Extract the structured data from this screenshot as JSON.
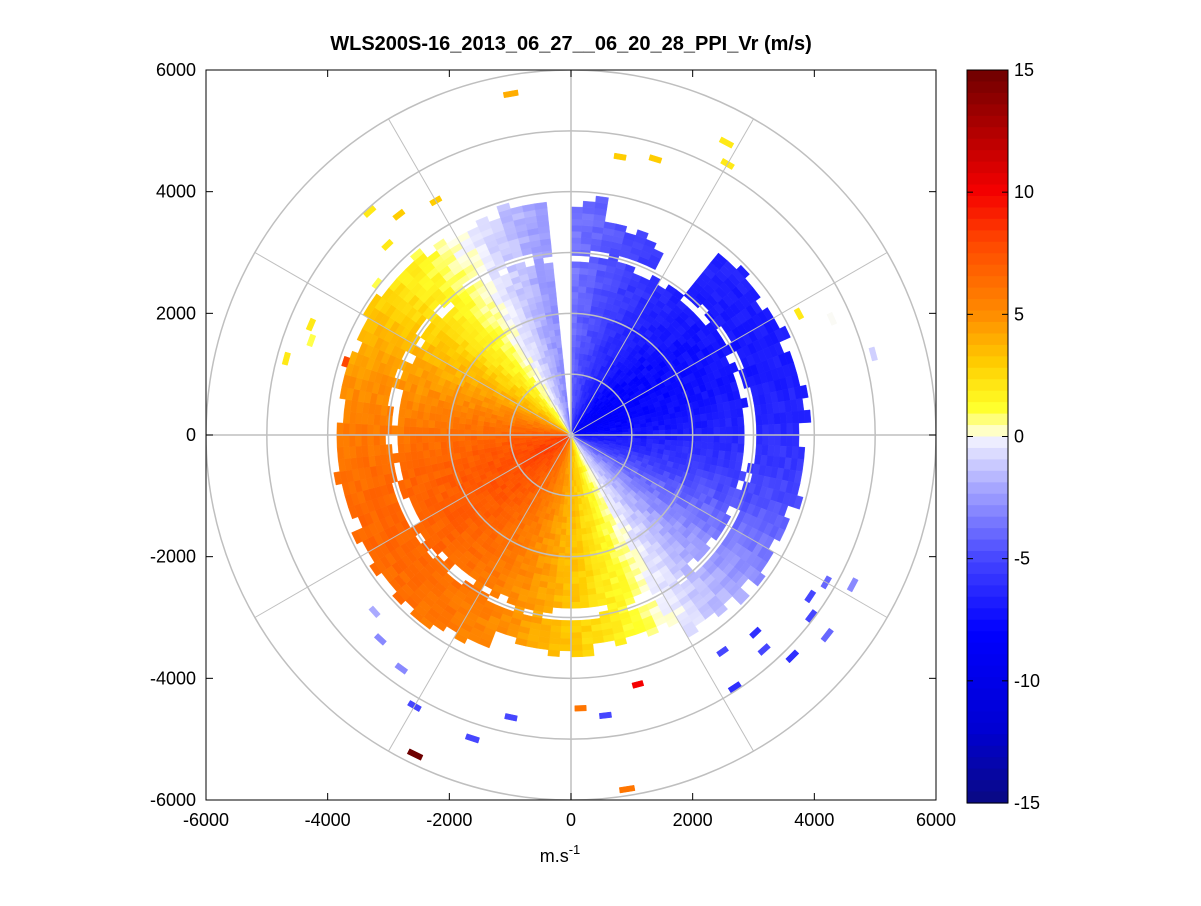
{
  "chart_data": {
    "type": "polar_ppi",
    "title": "WLS200S-16_2013_06_27__06_20_28_PPI_Vr (m/s)",
    "xlabel": "m.s",
    "xlabel_superscript": "-1",
    "ylabel": "",
    "xlim": [
      -6000,
      6000
    ],
    "ylim": [
      -6000,
      6000
    ],
    "xticks": [
      -6000,
      -4000,
      -2000,
      0,
      2000,
      4000,
      6000
    ],
    "yticks": [
      -6000,
      -4000,
      -2000,
      0,
      2000,
      4000,
      6000
    ],
    "xtick_labels": [
      "-6000",
      "-4000",
      "-2000",
      "0",
      "2000",
      "4000",
      "6000"
    ],
    "ytick_labels": [
      "6000",
      "4000",
      "2000",
      "0",
      "-2000",
      "-4000",
      "-6000"
    ],
    "polar_grid": {
      "rings_m": [
        1000,
        2000,
        3000,
        4000,
        5000,
        6000
      ],
      "spoke_angles_deg": [
        0,
        30,
        60,
        90,
        120,
        150,
        180,
        210,
        240,
        270,
        300,
        330
      ],
      "color": "#bfbfbf"
    },
    "colorbar": {
      "min": -15,
      "max": 15,
      "ticks": [
        15,
        10,
        5,
        0,
        -5,
        -10,
        -15
      ],
      "tick_labels": [
        "15",
        "10",
        "5",
        "0",
        "-5",
        "-10",
        "-15"
      ],
      "colormap": "blue-white-yellow-red"
    },
    "field": {
      "range_max_m": 3800,
      "gap_sector_deg": [
        -6,
        1
      ],
      "description_positive": "approaching sector west (orange/red, up to ~9 m/s)",
      "description_negative": "receding sector east (blue, down to ~-10 m/s)"
    },
    "sparse_arcs": [
      {
        "r": 5650,
        "az": -10,
        "v": 4
      },
      {
        "r": 4900,
        "az": -42,
        "v": 2
      },
      {
        "r": 4550,
        "az": -38,
        "v": 3
      },
      {
        "r": 4300,
        "az": -44,
        "v": 2
      },
      {
        "r": 4400,
        "az": -30,
        "v": 3
      },
      {
        "r": 4000,
        "az": -52,
        "v": 1
      },
      {
        "r": 4600,
        "az": -67,
        "v": 2
      },
      {
        "r": 4800,
        "az": -75,
        "v": 2
      },
      {
        "r": 4500,
        "az": -70,
        "v": 1
      },
      {
        "r": 3850,
        "az": -72,
        "v": 8
      },
      {
        "r": 4600,
        "az": 10,
        "v": 3
      },
      {
        "r": 5400,
        "az": 28,
        "v": 2
      },
      {
        "r": 4700,
        "az": 17,
        "v": 3
      },
      {
        "r": 5100,
        "az": 30,
        "v": 2
      },
      {
        "r": 4200,
        "az": 62,
        "v": 2
      },
      {
        "r": 4650,
        "az": 66,
        "v": 0
      },
      {
        "r": 5100,
        "az": 75,
        "v": -1
      },
      {
        "r": 4800,
        "az": 120,
        "v": -4
      },
      {
        "r": 5200,
        "az": 118,
        "v": -3
      },
      {
        "r": 4700,
        "az": 124,
        "v": -5
      },
      {
        "r": 4900,
        "az": 127,
        "v": -5
      },
      {
        "r": 5300,
        "az": 128,
        "v": -4
      },
      {
        "r": 4400,
        "az": 137,
        "v": -6
      },
      {
        "r": 4700,
        "az": 138,
        "v": -5
      },
      {
        "r": 5100,
        "az": 135,
        "v": -6
      },
      {
        "r": 4300,
        "az": 145,
        "v": -5
      },
      {
        "r": 4900,
        "az": 147,
        "v": -6
      },
      {
        "r": 4200,
        "az": 165,
        "v": 10
      },
      {
        "r": 4600,
        "az": 173,
        "v": -5
      },
      {
        "r": 5850,
        "az": 171,
        "v": 6
      },
      {
        "r": 4700,
        "az": 192,
        "v": -5
      },
      {
        "r": 4450,
        "az": 178,
        "v": 6
      },
      {
        "r": 5200,
        "az": 198,
        "v": -5
      },
      {
        "r": 5800,
        "az": 206,
        "v": 15
      },
      {
        "r": 5100,
        "az": 210,
        "v": -5
      },
      {
        "r": 4700,
        "az": 216,
        "v": -3
      },
      {
        "r": 4550,
        "az": 223,
        "v": -3
      },
      {
        "r": 4300,
        "az": 228,
        "v": -2
      }
    ]
  }
}
